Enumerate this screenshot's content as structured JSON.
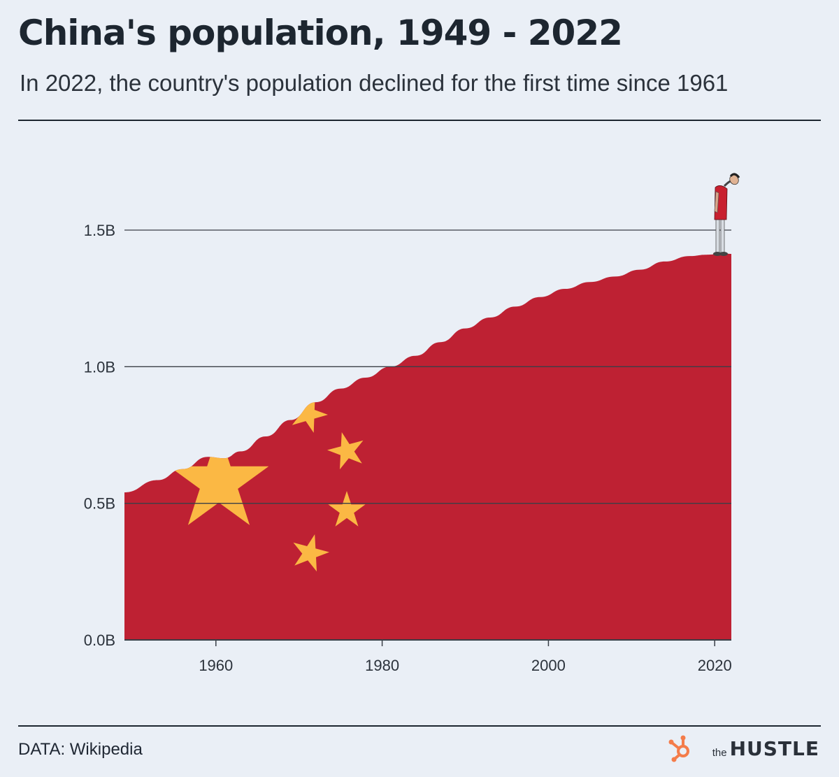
{
  "header": {
    "title": "China's population, 1949 - 2022",
    "subtitle": "In 2022, the country's population declined for the first time since 1961"
  },
  "footer": {
    "source": "DATA: Wikipedia",
    "brand_prefix": "the",
    "brand_name": "HUSTLE"
  },
  "colors": {
    "background": "#eaeff6",
    "area_fill": "#be2133",
    "star": "#fbb844",
    "grid": "#3a3f47",
    "brand_icon": "#f47c4a"
  },
  "illustration": {
    "figure_icon": "person-looking-down-icon",
    "flag_stars_icon": "china-flag-stars-icon"
  },
  "chart_data": {
    "type": "area",
    "title": "China's population, 1949 - 2022",
    "subtitle": "In 2022, the country's population declined for the first time since 1961",
    "xlabel": "",
    "ylabel": "",
    "xlim": [
      1949,
      2022
    ],
    "ylim": [
      0,
      1.5
    ],
    "grid": true,
    "y_unit": "B",
    "x_ticks": [
      "1960",
      "1980",
      "2000",
      "2020"
    ],
    "y_ticks": [
      "0.0B",
      "0.5B",
      "1.0B",
      "1.5B"
    ],
    "x": [
      1949,
      1953,
      1956,
      1959,
      1961,
      1963,
      1966,
      1969,
      1972,
      1975,
      1978,
      1981,
      1984,
      1987,
      1990,
      1993,
      1996,
      1999,
      2002,
      2005,
      2008,
      2011,
      2014,
      2017,
      2019,
      2021,
      2022
    ],
    "values": [
      0.54,
      0.585,
      0.625,
      0.67,
      0.665,
      0.69,
      0.745,
      0.805,
      0.87,
      0.92,
      0.96,
      1.0,
      1.04,
      1.09,
      1.14,
      1.18,
      1.22,
      1.255,
      1.285,
      1.31,
      1.33,
      1.355,
      1.385,
      1.405,
      1.41,
      1.415,
      1.413
    ]
  }
}
